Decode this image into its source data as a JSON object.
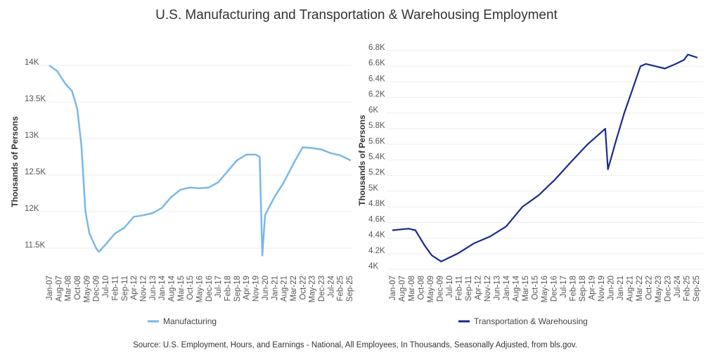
{
  "title": "U.S. Manufacturing and Transportation & Warehousing Employment",
  "source": "Source: U.S. Employment, Hours, and Earnings - National, All Employees, In Thousands, Seasonally Adjusted, from bls.gov.",
  "chart_data": [
    {
      "type": "line",
      "ylabel": "Thousands of Persons",
      "xlabel": "",
      "ylim": [
        11500,
        14000
      ],
      "yticks": [
        11500,
        12000,
        12500,
        13000,
        13500,
        14000
      ],
      "ytick_labels": [
        "11.5K",
        "12K",
        "12.5K",
        "13K",
        "13.5K",
        "14K"
      ],
      "xtick_labels": [
        "Jan-07",
        "Aug-07",
        "Mar-08",
        "Oct-08",
        "May-09",
        "Dec-09",
        "Jul-10",
        "Feb-11",
        "Sep-11",
        "Apr-12",
        "Nov-12",
        "Jun-13",
        "Jan-14",
        "Aug-14",
        "Mar-15",
        "Oct-15",
        "May-16",
        "Dec-16",
        "Jul-17",
        "Feb-18",
        "Sep-18",
        "Apr-19",
        "Nov-19",
        "Jun-20",
        "Jan-21",
        "Aug-21",
        "Mar-22",
        "Oct-22",
        "May-23",
        "Dec-23",
        "Jul-24",
        "Feb-25",
        "Sep-25"
      ],
      "grid": true,
      "legend_position": "bottom",
      "color": "#7ab8e8",
      "series": [
        {
          "name": "Manufacturing",
          "x": [
            "2007-01",
            "2007-07",
            "2008-01",
            "2008-06",
            "2008-10",
            "2009-01",
            "2009-04",
            "2009-07",
            "2009-12",
            "2010-02",
            "2010-07",
            "2011-02",
            "2011-09",
            "2012-04",
            "2012-11",
            "2013-06",
            "2014-01",
            "2014-08",
            "2015-03",
            "2015-10",
            "2016-05",
            "2016-12",
            "2017-07",
            "2018-02",
            "2018-09",
            "2019-04",
            "2019-11",
            "2020-02",
            "2020-04",
            "2020-06",
            "2021-01",
            "2021-08",
            "2022-03",
            "2022-10",
            "2023-05",
            "2023-12",
            "2024-07",
            "2025-02",
            "2025-10"
          ],
          "y": [
            14000,
            13920,
            13750,
            13650,
            13400,
            12900,
            12000,
            11700,
            11500,
            11450,
            11550,
            11700,
            11780,
            11930,
            11950,
            11980,
            12050,
            12200,
            12300,
            12330,
            12320,
            12330,
            12400,
            12550,
            12700,
            12780,
            12780,
            12750,
            11400,
            11950,
            12200,
            12400,
            12650,
            12880,
            12870,
            12850,
            12800,
            12770,
            12700
          ]
        }
      ]
    },
    {
      "type": "line",
      "ylabel": "Thousands of Persons",
      "xlabel": "",
      "ylim": [
        4000,
        6800
      ],
      "yticks": [
        4000,
        4200,
        4400,
        4600,
        4800,
        5000,
        5200,
        5400,
        5600,
        5800,
        6000,
        6200,
        6400,
        6600,
        6800
      ],
      "ytick_labels": [
        "4K",
        "4.2K",
        "4.4K",
        "4.6K",
        "4.8K",
        "5K",
        "5.2K",
        "5.4K",
        "5.6K",
        "5.8K",
        "6K",
        "6.2K",
        "6.4K",
        "6.6K",
        "6.8K"
      ],
      "xtick_labels": [
        "Jan-07",
        "Aug-07",
        "Mar-08",
        "Oct-08",
        "May-09",
        "Dec-09",
        "Jul-10",
        "Feb-11",
        "Sep-11",
        "Apr-12",
        "Nov-12",
        "Jun-13",
        "Jan-14",
        "Aug-14",
        "Mar-15",
        "Oct-15",
        "May-16",
        "Dec-16",
        "Jul-17",
        "Feb-18",
        "Sep-18",
        "Apr-19",
        "Nov-19",
        "Jun-20",
        "Jan-21",
        "Aug-21",
        "Mar-22",
        "Oct-22",
        "May-23",
        "Dec-23",
        "Jul-24",
        "Feb-25",
        "Sep-25"
      ],
      "grid": true,
      "legend_position": "bottom",
      "color": "#1b2a8c",
      "series": [
        {
          "name": "Transportation & Warehousing",
          "x": [
            "2007-01",
            "2008-01",
            "2008-06",
            "2009-01",
            "2009-06",
            "2010-01",
            "2011-01",
            "2012-01",
            "2013-01",
            "2014-01",
            "2015-01",
            "2016-01",
            "2017-01",
            "2018-01",
            "2019-01",
            "2020-02",
            "2020-04",
            "2020-10",
            "2021-04",
            "2021-10",
            "2022-04",
            "2022-08",
            "2023-03",
            "2023-10",
            "2024-06",
            "2024-12",
            "2025-03",
            "2025-10"
          ],
          "y": [
            4500,
            4520,
            4500,
            4300,
            4180,
            4100,
            4200,
            4330,
            4420,
            4550,
            4800,
            4950,
            5150,
            5380,
            5600,
            5800,
            5280,
            5650,
            6000,
            6300,
            6600,
            6630,
            6600,
            6570,
            6630,
            6680,
            6750,
            6710
          ]
        }
      ]
    }
  ]
}
